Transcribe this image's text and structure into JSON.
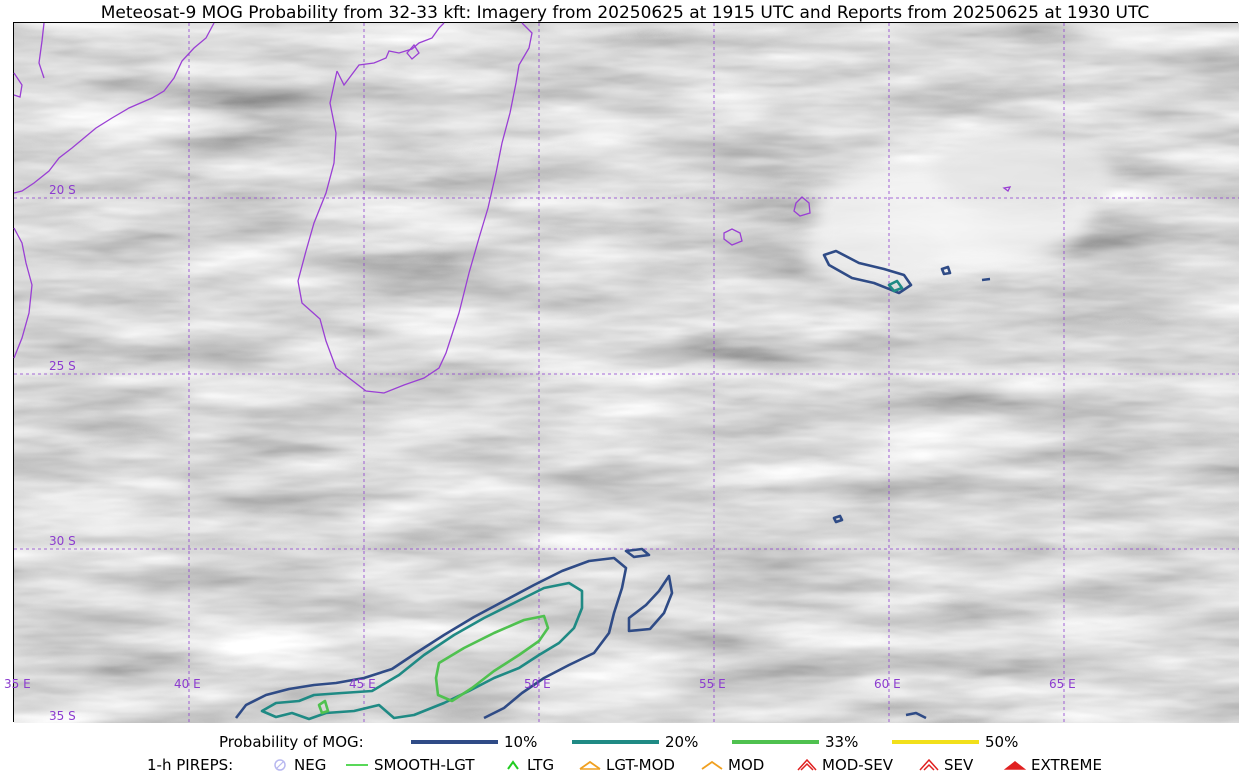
{
  "title": "Meteosat-9 MOG Probability from 32-33 kft: Imagery from 20250625 at 1915 UTC and Reports from 20250625 at 1930 UTC",
  "map": {
    "lat_labels": [
      "20 S",
      "25 S",
      "30 S",
      "35 S"
    ],
    "lon_labels": [
      "35 E",
      "40 E",
      "45 E",
      "50 E",
      "55 E",
      "60 E",
      "65 E"
    ],
    "gridline_color": "#8c3ccf",
    "coastline_color": "#9a3fd4",
    "contour_colors": {
      "p10": "#2f4b86",
      "p20": "#1f8a84",
      "p33": "#4fc14f",
      "p50": "#f2e01a"
    }
  },
  "legend_probability": {
    "label": "Probability of MOG:",
    "items": [
      {
        "label": "10%",
        "color": "#2f4b86"
      },
      {
        "label": "20%",
        "color": "#1f8a84"
      },
      {
        "label": "33%",
        "color": "#4fc14f"
      },
      {
        "label": "50%",
        "color": "#f2e01a"
      }
    ]
  },
  "legend_pireps": {
    "label": "1-h PIREPS:",
    "items": [
      {
        "label": "NEG",
        "icon": "neg-circle-icon",
        "color": "#b8b8f0"
      },
      {
        "label": "SMOOTH-LGT",
        "icon": "smooth-line-icon",
        "color": "#22cc22"
      },
      {
        "label": "LTG",
        "icon": "ltg-caret-icon",
        "color": "#22cc22"
      },
      {
        "label": "LGT-MOD",
        "icon": "lgt-mod-caret-icon",
        "color": "#f0a020"
      },
      {
        "label": "MOD",
        "icon": "mod-caret-icon",
        "color": "#f0a020"
      },
      {
        "label": "MOD-SEV",
        "icon": "mod-sev-caret-icon",
        "color": "#e02020"
      },
      {
        "label": "SEV",
        "icon": "sev-caret-icon",
        "color": "#e02020"
      },
      {
        "label": "EXTREME",
        "icon": "extreme-caret-icon",
        "color": "#e02020"
      }
    ]
  }
}
